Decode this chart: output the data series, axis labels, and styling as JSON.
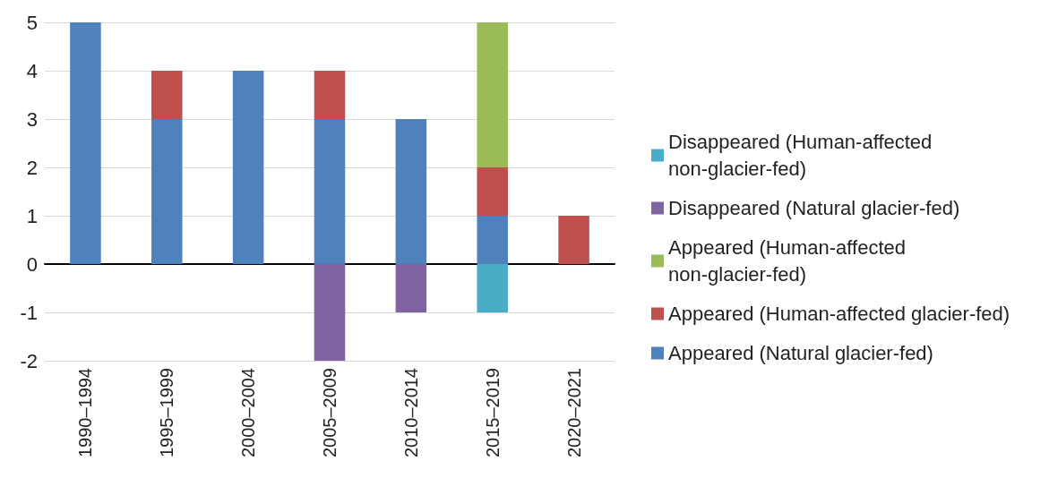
{
  "chart_data": {
    "type": "bar",
    "stacked": true,
    "categories": [
      "1990–1994",
      "1995–1999",
      "2000–2004",
      "2005–2009",
      "2010–2014",
      "2015–2019",
      "2020–2021"
    ],
    "series": [
      {
        "name": "Appeared (Natural glacier-fed)",
        "color": "#4f81bd",
        "values": [
          5,
          3,
          4,
          3,
          3,
          1,
          null
        ]
      },
      {
        "name": "Appeared (Human-affected glacier-fed)",
        "color": "#c0504d",
        "values": [
          null,
          1,
          null,
          1,
          null,
          1,
          1
        ]
      },
      {
        "name": "Appeared (Human-affected non-glacier-fed)",
        "color": "#9bbb59",
        "values": [
          null,
          null,
          null,
          null,
          null,
          3,
          null
        ]
      },
      {
        "name": "Disappeared (Natural glacier-fed)",
        "color": "#8064a2",
        "values": [
          null,
          null,
          null,
          -2,
          -1,
          null,
          null
        ]
      },
      {
        "name": "Disappeared (Human-affected non-glacier-fed)",
        "color": "#4bacc6",
        "values": [
          null,
          null,
          null,
          null,
          null,
          -1,
          null
        ]
      }
    ],
    "ylim": [
      -2,
      5
    ],
    "yticks": [
      -2,
      -1,
      0,
      1,
      2,
      3,
      4,
      5
    ],
    "grid": "y",
    "legend": "right"
  }
}
